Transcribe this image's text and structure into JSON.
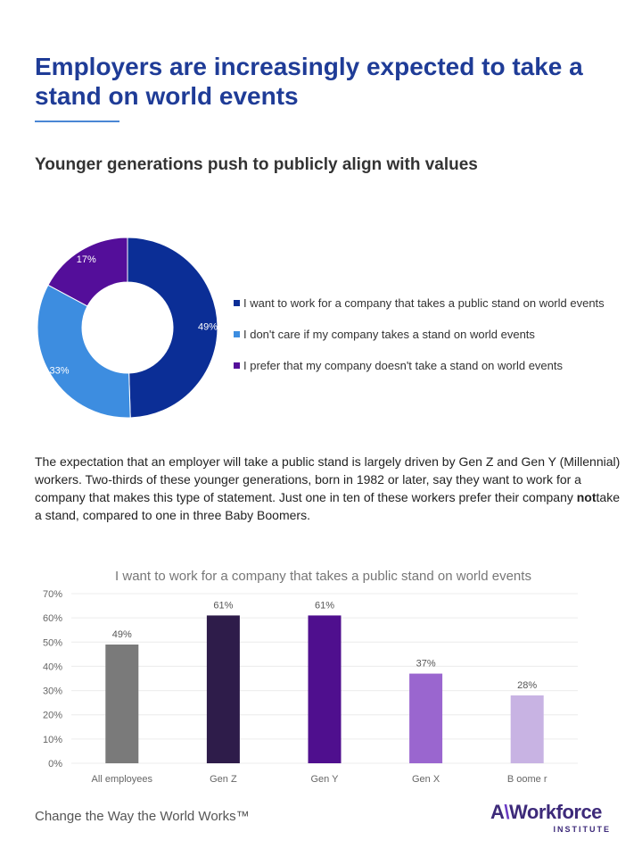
{
  "header": {
    "title": "Employers are increasingly expected to take a stand on world events",
    "subtitle": "Younger generations push to publicly align with values"
  },
  "body_text": {
    "part1": "The expectation that an employer will take a public stand is largely driven by Gen Z and Gen Y (Millennial) workers. Two-thirds of these younger generations, born in 1982 or later, say they want to work for a company that makes this type of statement. Just one in ten of these workers prefer their company ",
    "bold": "not",
    "part2": "take a stand, compared to one in three Baby Boomers."
  },
  "footer": {
    "tagline": "Change the Way the World Works™",
    "logo_main_a": "A",
    "logo_main_slash": "\\",
    "logo_main_b": "Workforce",
    "logo_sub": "INSTITUTE"
  },
  "chart_data": [
    {
      "type": "pie",
      "variant": "donut",
      "title": "",
      "labels": [
        "I want to work for a company that takes a public stand on world events",
        "I don't care if my company takes a stand on world events",
        "I prefer that my company doesn't take a stand on world events"
      ],
      "values": [
        49,
        33,
        17
      ],
      "value_labels": [
        "49%",
        "33%",
        "17%"
      ],
      "colors": [
        "#0b2e96",
        "#3d8de0",
        "#540e9a"
      ],
      "legend_position": "right"
    },
    {
      "type": "bar",
      "title": "I want to work for a company that takes a public stand on world events",
      "categories": [
        "All employees",
        "Gen Z",
        "Gen Y",
        "Gen X",
        "B oome r"
      ],
      "values": [
        49,
        61,
        61,
        37,
        28
      ],
      "value_labels": [
        "49%",
        "61%",
        "61%",
        "37%",
        "28%"
      ],
      "colors": [
        "#7a7a7a",
        "#2e1c4a",
        "#4f0f8e",
        "#9a66cf",
        "#c8b3e3"
      ],
      "ylim": [
        0,
        70
      ],
      "yticks": [
        "0%",
        "10%",
        "20%",
        "30%",
        "40%",
        "50%",
        "60%",
        "70%"
      ],
      "xlabel": "",
      "ylabel": "",
      "grid": true
    }
  ]
}
